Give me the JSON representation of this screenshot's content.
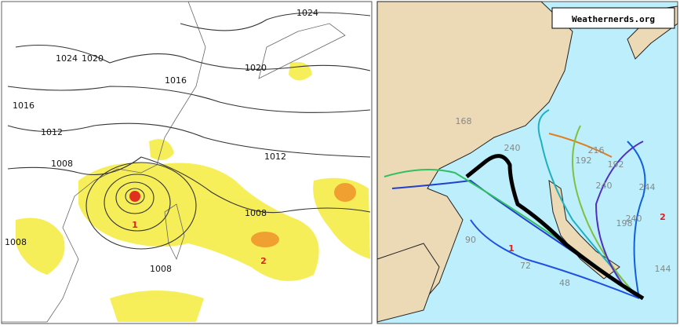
{
  "left_map": {
    "isobar_labels": [
      "1024",
      "1024",
      "1020",
      "1020",
      "1016",
      "1016",
      "1012",
      "1012",
      "1008",
      "1008",
      "1008",
      "1008"
    ],
    "storm_markers": [
      "1",
      "2"
    ]
  },
  "right_map": {
    "credit": "Weathernerds.org",
    "track_labels": [
      "168",
      "240",
      "192",
      "216",
      "192",
      "240",
      "244",
      "240",
      "198",
      "72",
      "90",
      "48",
      "144"
    ],
    "storm_markers": [
      "1",
      "2"
    ]
  }
}
